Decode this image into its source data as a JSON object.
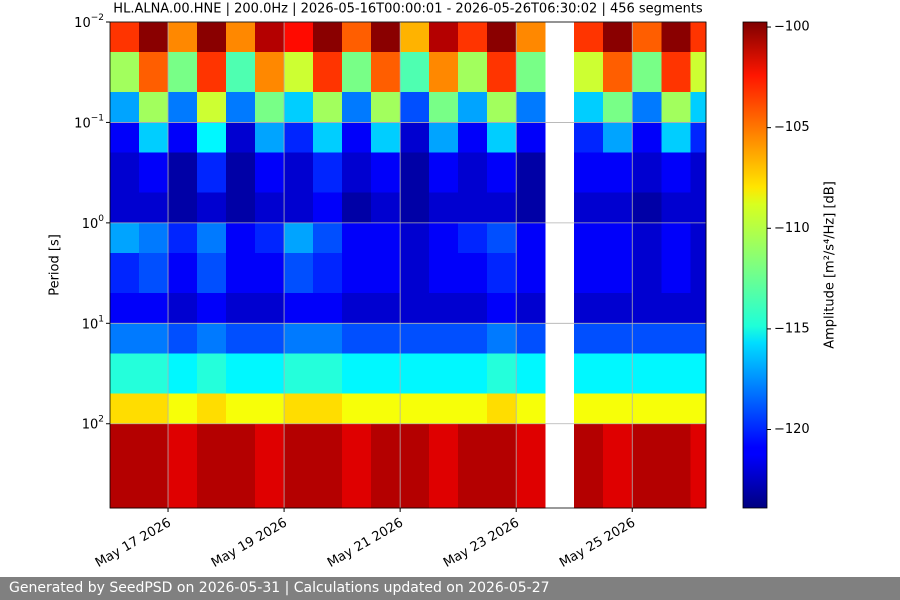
{
  "chart_data": {
    "type": "heatmap",
    "title": "HL.ALNA.00.HNE | 200.0Hz | 2026-05-16T00:00:01 - 2026-05-26T06:30:02 | 456 segments",
    "y_label": "Period [s]",
    "colorbar_label": "Amplitude [m²/s⁴/Hz] [dB]",
    "log_y": true,
    "y_inverted": true,
    "grid": true,
    "colormap": "jet",
    "xlim": [
      "2026-05-16T00:00",
      "2026-05-26T06:30"
    ],
    "xticks": [
      {
        "value": "2026-05-17",
        "label": "May 17 2026"
      },
      {
        "value": "2026-05-19",
        "label": "May 19 2026"
      },
      {
        "value": "2026-05-21",
        "label": "May 21 2026"
      },
      {
        "value": "2026-05-23",
        "label": "May 23 2026"
      },
      {
        "value": "2026-05-25",
        "label": "May 25 2026"
      }
    ],
    "ylim": [
      0.01,
      690
    ],
    "yticks": [
      {
        "value": 0.01,
        "label": "10",
        "exponent": "−2"
      },
      {
        "value": 0.1,
        "label": "10",
        "exponent": "−1"
      },
      {
        "value": 1,
        "label": "10",
        "exponent": "0"
      },
      {
        "value": 10,
        "label": "10",
        "exponent": "1"
      },
      {
        "value": 100,
        "label": "10",
        "exponent": "2"
      }
    ],
    "clim": [
      -123.9,
      -99.75
    ],
    "cticks": [
      {
        "value": -100,
        "label": "−100"
      },
      {
        "value": -105,
        "label": "−105"
      },
      {
        "value": -110,
        "label": "−110"
      },
      {
        "value": -115,
        "label": "−115"
      },
      {
        "value": -120,
        "label": "−120"
      }
    ],
    "x_bins": [
      "2026-05-16T00:00",
      "2026-05-16T12:00",
      "2026-05-17T00:00",
      "2026-05-17T12:00",
      "2026-05-18T00:00",
      "2026-05-18T12:00",
      "2026-05-19T00:00",
      "2026-05-19T12:00",
      "2026-05-20T00:00",
      "2026-05-20T12:00",
      "2026-05-21T00:00",
      "2026-05-21T12:00",
      "2026-05-22T00:00",
      "2026-05-22T12:00",
      "2026-05-23T00:00",
      "2026-05-23T12:00",
      "2026-05-24T00:00",
      "2026-05-24T12:00",
      "2026-05-25T00:00",
      "2026-05-25T12:00",
      "2026-05-26T00:00",
      "2026-05-26T06:30"
    ],
    "period_bins": [
      0.01,
      0.02,
      0.05,
      0.1,
      0.2,
      0.5,
      1,
      2,
      5,
      10,
      20,
      50,
      100,
      690
    ],
    "z": [
      [
        -104,
        -100,
        -106,
        -100,
        -106,
        -101,
        -103,
        -100,
        -105,
        -100,
        -107,
        -101,
        -104,
        -100,
        -106,
        null,
        -104,
        -100,
        -105,
        -100,
        -104
      ],
      [
        -111,
        -105,
        -112,
        -104,
        -113,
        -106,
        -110,
        -104,
        -112,
        -105,
        -113,
        -106,
        -111,
        -104,
        -112,
        null,
        -110,
        -105,
        -112,
        -104,
        -110
      ],
      [
        -117,
        -111,
        -118,
        -110,
        -118,
        -112,
        -116,
        -111,
        -118,
        -111,
        -119,
        -112,
        -117,
        -111,
        -118,
        null,
        -116,
        -112,
        -118,
        -111,
        -116
      ],
      [
        -121,
        -116,
        -121,
        -115,
        -122,
        -117,
        -120,
        -116,
        -121,
        -116,
        -122,
        -117,
        -121,
        -116,
        -121,
        null,
        -120,
        -117,
        -121,
        -116,
        -120
      ],
      [
        -122,
        -121,
        -123,
        -120,
        -123,
        -121,
        -122,
        -120,
        -122,
        -121,
        -123,
        -121,
        -122,
        -121,
        -123,
        null,
        -121,
        -121,
        -122,
        -121,
        -122
      ],
      [
        -122,
        -122,
        -123,
        -122,
        -123,
        -122,
        -122,
        -121,
        -123,
        -122,
        -123,
        -122,
        -122,
        -122,
        -123,
        null,
        -122,
        -122,
        -123,
        -122,
        -122
      ],
      [
        -117,
        -118,
        -120,
        -118,
        -121,
        -120,
        -117,
        -119,
        -121,
        -121,
        -122,
        -121,
        -120,
        -119,
        -121,
        null,
        -121,
        -121,
        -122,
        -121,
        -122
      ],
      [
        -120,
        -119,
        -121,
        -119,
        -121,
        -121,
        -119,
        -120,
        -121,
        -121,
        -122,
        -121,
        -121,
        -120,
        -121,
        null,
        -121,
        -121,
        -122,
        -121,
        -122
      ],
      [
        -121,
        -121,
        -122,
        -121,
        -122,
        -122,
        -121,
        -121,
        -122,
        -122,
        -122,
        -122,
        -122,
        -121,
        -122,
        null,
        -122,
        -122,
        -122,
        -122,
        -122
      ],
      [
        -118,
        -118,
        -119,
        -118,
        -119,
        -119,
        -118,
        -118,
        -119,
        -119,
        -119,
        -119,
        -119,
        -118,
        -119,
        null,
        -119,
        -119,
        -119,
        -119,
        -119
      ],
      [
        -114,
        -114,
        -115,
        -114,
        -115,
        -115,
        -114,
        -114,
        -115,
        -115,
        -115,
        -115,
        -115,
        -114,
        -115,
        null,
        -115,
        -115,
        -115,
        -115,
        -115
      ],
      [
        -108,
        -108,
        -109,
        -108,
        -109,
        -109,
        -108,
        -108,
        -109,
        -109,
        -109,
        -109,
        -109,
        -108,
        -109,
        null,
        -109,
        -109,
        -109,
        -109,
        -109
      ],
      [
        -101,
        -101,
        -102,
        -101,
        -101,
        -102,
        -101,
        -101,
        -102,
        -101,
        -101,
        -102,
        -101,
        -101,
        -102,
        null,
        -101,
        -102,
        -101,
        -101,
        -102
      ]
    ]
  },
  "footer": "Generated by SeedPSD on 2026-05-31 | Calculations updated on 2026-05-27"
}
